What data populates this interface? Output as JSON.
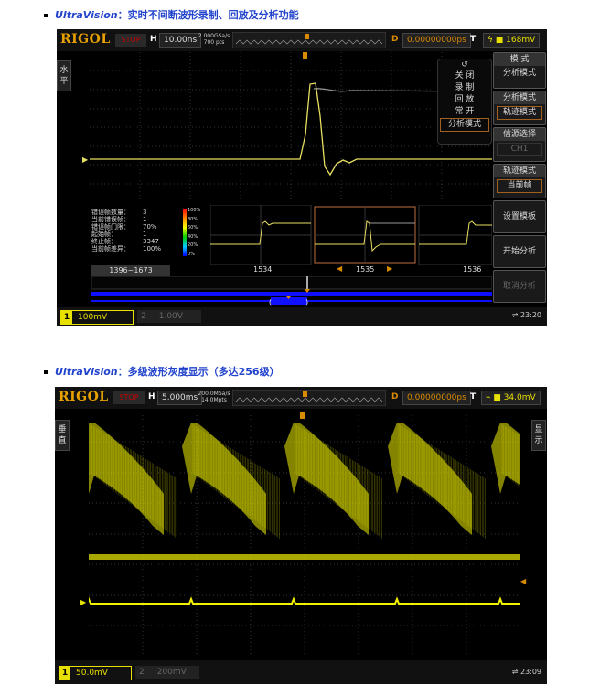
{
  "sections": [
    {
      "heading_brand": "UltraVision",
      "heading_text": "：实时不间断波形录制、回放及分析功能"
    },
    {
      "heading_brand": "UltraVision",
      "heading_text": "：多级波形灰度显示（多达256级）"
    }
  ],
  "scope1": {
    "logo": "RIGOL",
    "run_state": "STOP",
    "h_label": "H",
    "timebase": "10.00ns",
    "sample_rate": "2.000GSa/s",
    "memory_depth": "700 pts",
    "delay_label": "D",
    "delay": "0.00000000ps",
    "trigger_label": "T",
    "trigger_level": "168mV",
    "left_tab": "水平",
    "side_tab": "波形录制",
    "popup": {
      "items": [
        "关 闭",
        "录 制",
        "回 放",
        "常 开",
        "分析模式"
      ],
      "selected": "分析模式"
    },
    "menu": [
      {
        "title": "模 式",
        "value": "分析模式"
      },
      {
        "title": "分析模式",
        "value": "轨迹模式"
      },
      {
        "title": "信源选择",
        "value": "CH1"
      },
      {
        "title": "轨迹模式",
        "value": "当前帧"
      },
      {
        "title": "设置模板"
      },
      {
        "title": "开始分析"
      },
      {
        "title": "取消分析"
      }
    ],
    "stats": [
      {
        "k": "错误帧数量：",
        "v": "3"
      },
      {
        "k": "当前错误帧：",
        "v": "1"
      },
      {
        "k": "错误帧门限：",
        "v": "70%"
      },
      {
        "k": "起始帧：",
        "v": "1"
      },
      {
        "k": "终止帧：",
        "v": "3347"
      },
      {
        "k": "当前帧差异：",
        "v": "100%"
      }
    ],
    "color_scale": [
      "100%",
      "80%",
      "60%",
      "40%",
      "20%",
      "0%"
    ],
    "frame_range": "1396~1673",
    "frames": [
      "1534",
      "1535",
      "1536"
    ],
    "ch1_scale": "100mV",
    "ch2_label": "2",
    "ch2_scale": "1.00V",
    "clock": "23:20",
    "colors": {
      "trace": "#e8e060",
      "accent": "#d88a00",
      "nav_bar": "#1010ff"
    }
  },
  "scope2": {
    "logo": "RIGOL",
    "run_state": "STOP",
    "h_label": "H",
    "timebase": "5.000ms",
    "sample_rate": "200.0MSa/s",
    "memory_depth": "14.0Mpts",
    "delay_label": "D",
    "delay": "0.00000000ps",
    "trigger_label": "T",
    "trigger_level": "34.0mV",
    "left_tab": "垂直",
    "right_tab": "显示",
    "ch1_scale": "50.0mV",
    "ch2_label": "2",
    "ch2_scale": "200mV",
    "clock": "23:09",
    "colors": {
      "trace": "#f0f000"
    }
  }
}
